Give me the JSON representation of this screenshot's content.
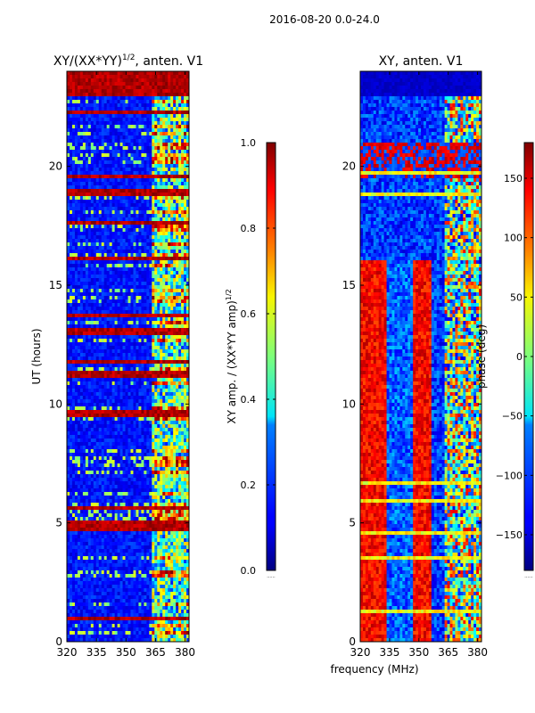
{
  "figure": {
    "suptitle": "2016-08-20 0.0-24.0",
    "xlabel": "frequency (MHz)",
    "ylabel": "UT (hours)",
    "empty_label": "......"
  },
  "chart_data": [
    {
      "type": "heatmap",
      "title_main": "XY/(XX*YY)",
      "title_sup": "1/2",
      "title_rest": ", anten. V1",
      "xlim": [
        320,
        382
      ],
      "ylim": [
        0,
        24
      ],
      "xticks": [
        320,
        335,
        350,
        365,
        380
      ],
      "yticks": [
        0,
        5,
        10,
        15,
        20
      ],
      "colorbar": {
        "label_main": "XY amp. / (XX*YY amp)",
        "label_sup": "1/2",
        "range": [
          0.0,
          1.0
        ],
        "ticks": [
          "0.0",
          "0.2",
          "0.4",
          "0.6",
          "0.8",
          "1.0"
        ],
        "colormap": "jet"
      }
    },
    {
      "type": "heatmap",
      "title": "XY, anten. V1",
      "xlim": [
        320,
        382
      ],
      "ylim": [
        0,
        24
      ],
      "xticks": [
        320,
        335,
        350,
        365,
        380
      ],
      "yticks": [
        0,
        5,
        10,
        15,
        20
      ],
      "colorbar": {
        "label": "phase (deg)",
        "range": [
          -180,
          180
        ],
        "ticks": [
          "−150",
          "−100",
          "−50",
          "0",
          "50",
          "100",
          "150"
        ],
        "colormap": "jet"
      }
    }
  ]
}
